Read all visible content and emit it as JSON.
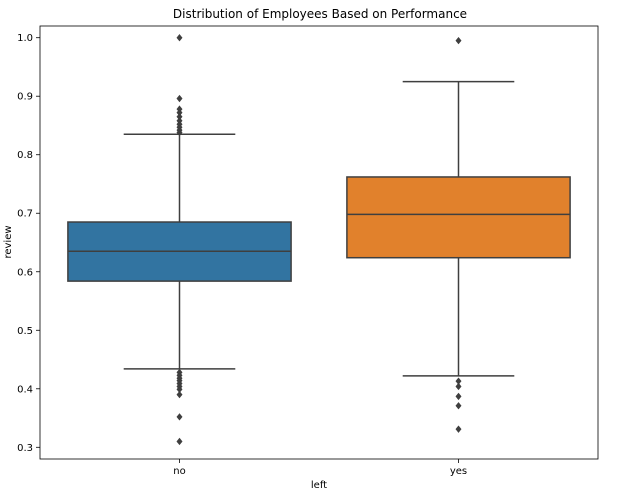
{
  "chart_data": {
    "type": "boxplot",
    "title": "Distribution of Employees Based on Performance",
    "xlabel": "left",
    "ylabel": "review",
    "ylim": [
      0.28,
      1.02
    ],
    "yticks": [
      0.3,
      0.4,
      0.5,
      0.6,
      0.7,
      0.8,
      0.9,
      1.0
    ],
    "ytick_labels": [
      "0.3",
      "0.4",
      "0.5",
      "0.6",
      "0.7",
      "0.8",
      "0.9",
      "1.0"
    ],
    "grid": false,
    "categories": [
      "no",
      "yes"
    ],
    "boxes": [
      {
        "category": "no",
        "color": "#3274a1",
        "whisker_low": 0.434,
        "q1": 0.584,
        "median": 0.635,
        "q3": 0.685,
        "whisker_high": 0.835,
        "outliers": [
          1.0,
          0.896,
          0.878,
          0.872,
          0.865,
          0.858,
          0.852,
          0.847,
          0.842,
          0.838,
          0.428,
          0.423,
          0.418,
          0.414,
          0.409,
          0.404,
          0.399,
          0.39,
          0.352,
          0.31
        ]
      },
      {
        "category": "yes",
        "color": "#e1812c",
        "whisker_low": 0.422,
        "q1": 0.624,
        "median": 0.698,
        "q3": 0.762,
        "whisker_high": 0.925,
        "outliers": [
          0.995,
          0.413,
          0.404,
          0.387,
          0.371,
          0.331
        ]
      }
    ]
  }
}
